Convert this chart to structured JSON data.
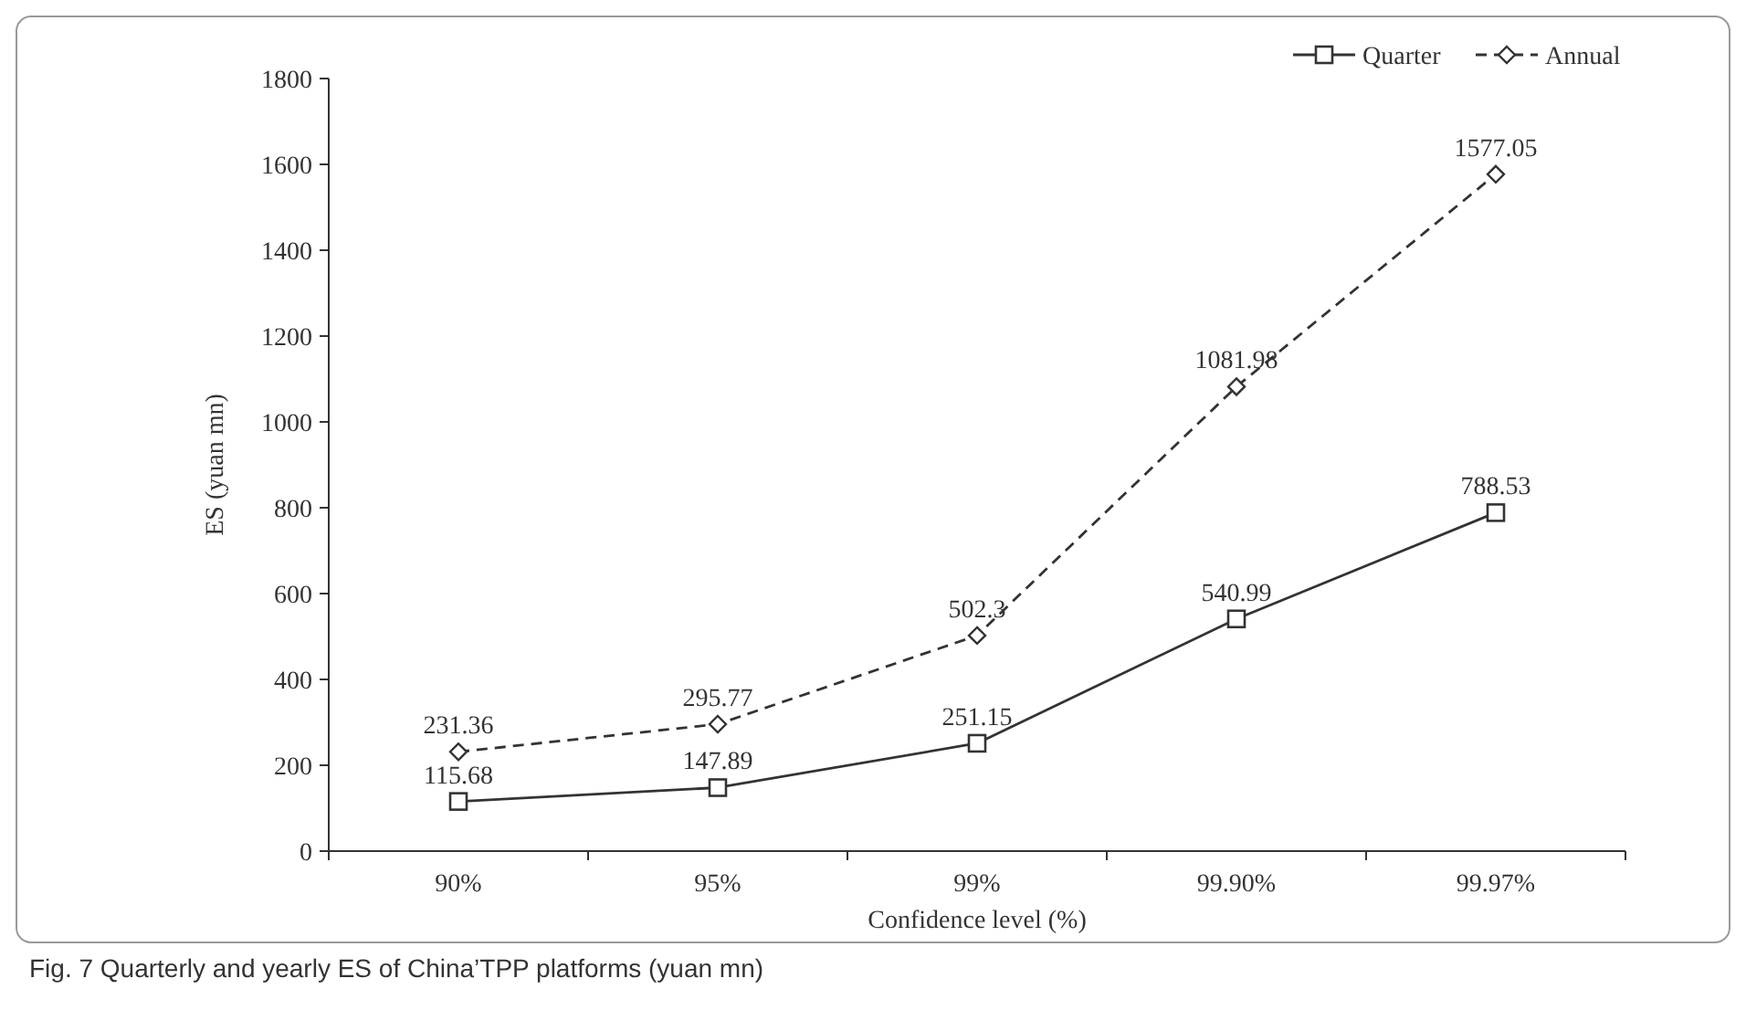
{
  "chart_data": {
    "type": "line",
    "title": "Fig. 7  Quarterly and yearly ES of China’TPP platforms (yuan mn)",
    "xlabel": "Confidence level (%)",
    "ylabel": "ES (yuan mn)",
    "categories": [
      "90%",
      "95%",
      "99%",
      "99.90%",
      "99.97%"
    ],
    "series": [
      {
        "name": "Quarter",
        "color": "#333333",
        "values": [
          115.68,
          147.89,
          251.15,
          540.99,
          788.53
        ],
        "marker": "square",
        "line_style": "solid"
      },
      {
        "name": "Annual",
        "color": "#333333",
        "values": [
          231.36,
          295.77,
          502.3,
          1081.98,
          1577.05
        ],
        "marker": "diamond",
        "line_style": "dashed"
      }
    ],
    "ylim": [
      0,
      1800
    ],
    "yticks": [
      0,
      200,
      400,
      600,
      800,
      1000,
      1200,
      1400,
      1600,
      1800
    ],
    "data_labels": true,
    "legend": "top right",
    "grid": false
  }
}
